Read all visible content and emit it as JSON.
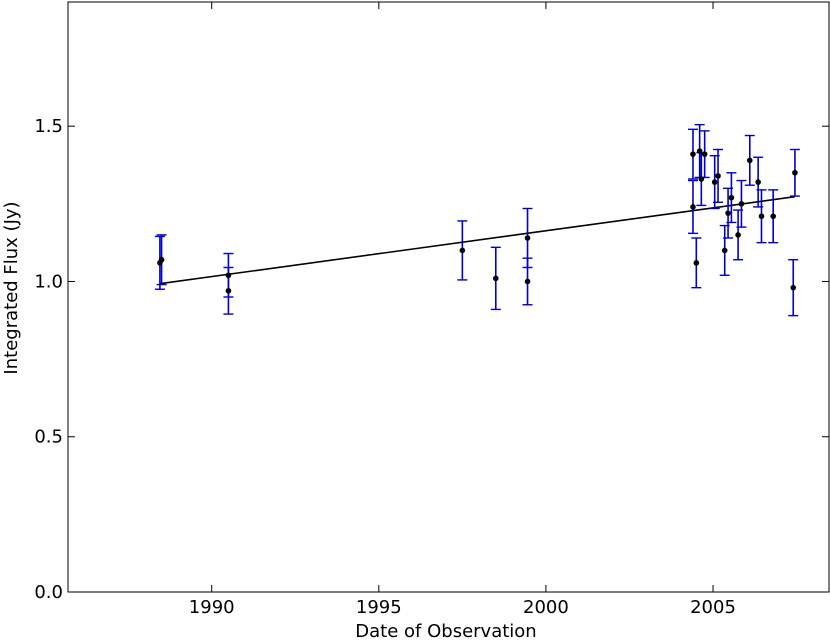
{
  "chart_data": {
    "type": "scatter",
    "xlabel": "Date of Observation",
    "ylabel": "Integrated Flux (Jy)",
    "xlim": [
      1985.7,
      2008.5
    ],
    "ylim": [
      0.0,
      1.9
    ],
    "xticks": [
      1990,
      1995,
      2000,
      2005
    ],
    "xtick_labels": [
      "1990",
      "1995",
      "2000",
      "2005"
    ],
    "yticks": [
      0.0,
      0.5,
      1.0,
      1.5
    ],
    "ytick_labels": [
      "0.0",
      "0.5",
      "1.0",
      "1.5"
    ],
    "grid": false,
    "colors": {
      "points": "#000000",
      "errorbars": "#0000cc",
      "fit": "#000000"
    },
    "points": [
      {
        "x": 1988.45,
        "y": 1.06,
        "err": 0.085
      },
      {
        "x": 1988.5,
        "y": 1.07,
        "err": 0.08
      },
      {
        "x": 1990.5,
        "y": 1.02,
        "err": 0.07
      },
      {
        "x": 1990.5,
        "y": 0.97,
        "err": 0.075
      },
      {
        "x": 1997.5,
        "y": 1.1,
        "err": 0.095
      },
      {
        "x": 1998.5,
        "y": 1.01,
        "err": 0.1
      },
      {
        "x": 1999.45,
        "y": 1.14,
        "err": 0.095
      },
      {
        "x": 1999.45,
        "y": 1.0,
        "err": 0.075
      },
      {
        "x": 2004.4,
        "y": 1.41,
        "err": 0.08
      },
      {
        "x": 2004.4,
        "y": 1.24,
        "err": 0.085
      },
      {
        "x": 2004.5,
        "y": 1.06,
        "err": 0.08
      },
      {
        "x": 2004.6,
        "y": 1.42,
        "err": 0.085
      },
      {
        "x": 2004.65,
        "y": 1.33,
        "err": 0.085
      },
      {
        "x": 2004.75,
        "y": 1.41,
        "err": 0.075
      },
      {
        "x": 2005.05,
        "y": 1.32,
        "err": 0.085
      },
      {
        "x": 2005.15,
        "y": 1.34,
        "err": 0.085
      },
      {
        "x": 2005.35,
        "y": 1.1,
        "err": 0.08
      },
      {
        "x": 2005.45,
        "y": 1.22,
        "err": 0.08
      },
      {
        "x": 2005.55,
        "y": 1.27,
        "err": 0.08
      },
      {
        "x": 2005.75,
        "y": 1.15,
        "err": 0.08
      },
      {
        "x": 2005.85,
        "y": 1.25,
        "err": 0.075
      },
      {
        "x": 2006.1,
        "y": 1.39,
        "err": 0.08
      },
      {
        "x": 2006.35,
        "y": 1.32,
        "err": 0.08
      },
      {
        "x": 2006.45,
        "y": 1.21,
        "err": 0.085
      },
      {
        "x": 2006.8,
        "y": 1.21,
        "err": 0.085
      },
      {
        "x": 2007.4,
        "y": 0.98,
        "err": 0.09
      },
      {
        "x": 2007.45,
        "y": 1.35,
        "err": 0.075
      }
    ],
    "fit_line": {
      "x": [
        1988.45,
        2007.45
      ],
      "y": [
        0.993,
        1.273
      ]
    }
  }
}
